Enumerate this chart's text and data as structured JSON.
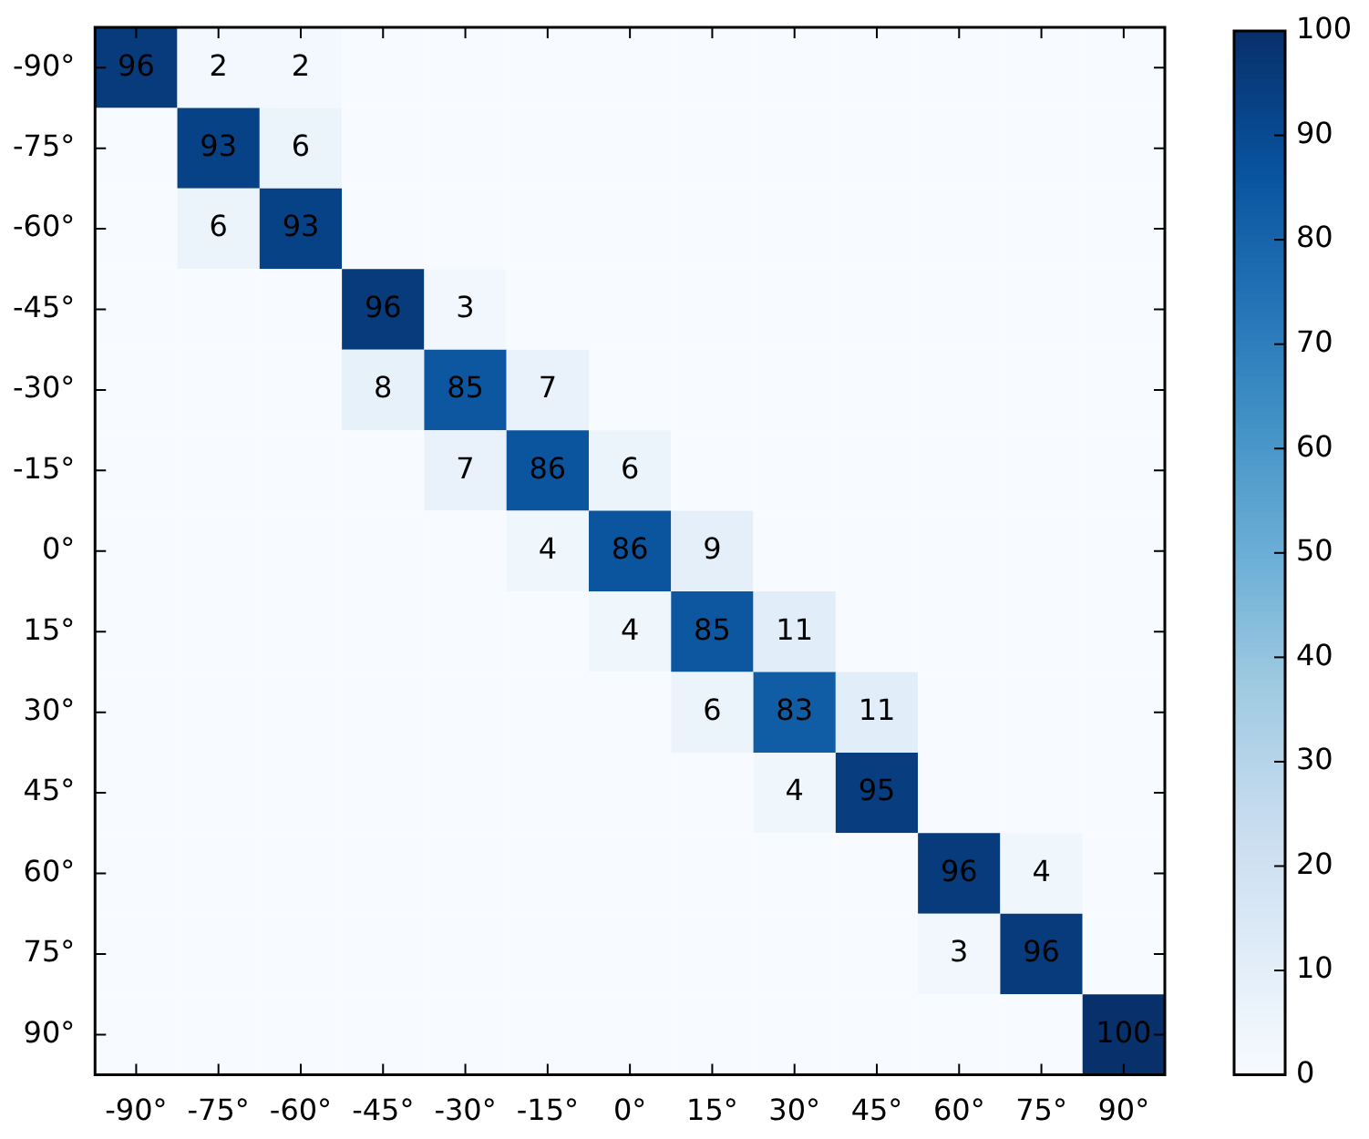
{
  "chart_data": {
    "type": "heatmap",
    "categories": [
      "-90°",
      "-75°",
      "-60°",
      "-45°",
      "-30°",
      "-15°",
      "0°",
      "15°",
      "30°",
      "45°",
      "60°",
      "75°",
      "90°"
    ],
    "y_categories": [
      "-90°",
      "-75°",
      "-60°",
      "-45°",
      "-30°",
      "-15°",
      "0°",
      "15°",
      "30°",
      "45°",
      "60°",
      "75°",
      "90°"
    ],
    "cells": [
      [
        96,
        2,
        2,
        0,
        0,
        0,
        0,
        0,
        0,
        0,
        0,
        0,
        0
      ],
      [
        0,
        93,
        6,
        0,
        0,
        0,
        0,
        0,
        0,
        0,
        0,
        0,
        0
      ],
      [
        0,
        6,
        93,
        0,
        0,
        0,
        0,
        0,
        0,
        0,
        0,
        0,
        0
      ],
      [
        0,
        0,
        0,
        96,
        3,
        0,
        0,
        0,
        0,
        0,
        0,
        0,
        0
      ],
      [
        0,
        0,
        0,
        8,
        85,
        7,
        0,
        0,
        0,
        0,
        0,
        0,
        0
      ],
      [
        0,
        0,
        0,
        0,
        7,
        86,
        6,
        0,
        0,
        0,
        0,
        0,
        0
      ],
      [
        0,
        0,
        0,
        0,
        0,
        4,
        86,
        9,
        0,
        0,
        0,
        0,
        0
      ],
      [
        0,
        0,
        0,
        0,
        0,
        0,
        4,
        85,
        11,
        0,
        0,
        0,
        0
      ],
      [
        0,
        0,
        0,
        0,
        0,
        0,
        0,
        6,
        83,
        11,
        0,
        0,
        0
      ],
      [
        0,
        0,
        0,
        0,
        0,
        0,
        0,
        0,
        4,
        95,
        0,
        0,
        0
      ],
      [
        0,
        0,
        0,
        0,
        0,
        0,
        0,
        0,
        0,
        0,
        96,
        4,
        0
      ],
      [
        0,
        0,
        0,
        0,
        0,
        0,
        0,
        0,
        0,
        0,
        3,
        96,
        0
      ],
      [
        0,
        0,
        0,
        0,
        0,
        0,
        0,
        0,
        0,
        0,
        0,
        0,
        100
      ]
    ],
    "cell_labels": [
      [
        "96",
        "2",
        "2",
        null,
        null,
        null,
        null,
        null,
        null,
        null,
        null,
        null,
        null
      ],
      [
        null,
        "93",
        "6",
        null,
        null,
        null,
        null,
        null,
        null,
        null,
        null,
        null,
        null
      ],
      [
        null,
        "6",
        "93",
        null,
        null,
        null,
        null,
        null,
        null,
        null,
        null,
        null,
        null
      ],
      [
        null,
        null,
        null,
        "96",
        "3",
        null,
        null,
        null,
        null,
        null,
        null,
        null,
        null
      ],
      [
        null,
        null,
        null,
        "8",
        "85",
        "7",
        null,
        null,
        null,
        null,
        null,
        null,
        null
      ],
      [
        null,
        null,
        null,
        null,
        "7",
        "86",
        "6",
        null,
        null,
        null,
        null,
        null,
        null
      ],
      [
        null,
        null,
        null,
        null,
        null,
        "4",
        "86",
        "9",
        null,
        null,
        null,
        null,
        null
      ],
      [
        null,
        null,
        null,
        null,
        null,
        null,
        "4",
        "85",
        "11",
        null,
        null,
        null,
        null
      ],
      [
        null,
        null,
        null,
        null,
        null,
        null,
        null,
        "6",
        "83",
        "11",
        null,
        null,
        null
      ],
      [
        null,
        null,
        null,
        null,
        null,
        null,
        null,
        null,
        "4",
        "95",
        null,
        null,
        null
      ],
      [
        null,
        null,
        null,
        null,
        null,
        null,
        null,
        null,
        null,
        null,
        "96",
        "4",
        null
      ],
      [
        null,
        null,
        null,
        null,
        null,
        null,
        null,
        null,
        null,
        null,
        "3",
        "96",
        null
      ],
      [
        null,
        null,
        null,
        null,
        null,
        null,
        null,
        null,
        null,
        null,
        null,
        null,
        "100"
      ]
    ],
    "clim": [
      0,
      100
    ],
    "cticks": [
      0,
      10,
      20,
      30,
      40,
      50,
      60,
      70,
      80,
      90,
      100
    ]
  }
}
